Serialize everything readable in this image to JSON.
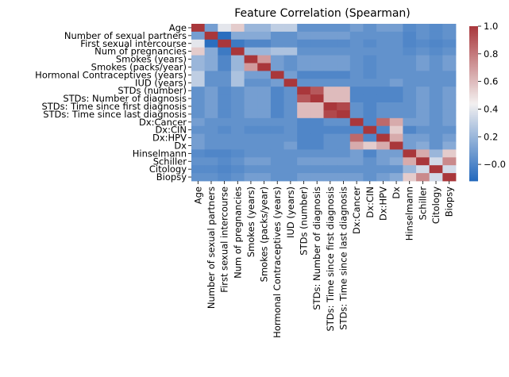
{
  "chart_data": {
    "type": "heatmap",
    "title": "Feature Correlation (Spearman)",
    "rows": [
      "Age",
      "Number of sexual partners",
      "First sexual intercourse",
      "Num of pregnancies",
      "Smokes (years)",
      "Smokes (packs/year)",
      "Hormonal Contraceptives (years)",
      "IUD (years)",
      "STDs (number)",
      "STDs: Number of diagnosis",
      "STDs: Time since first diagnosis",
      "STDs: Time since last diagnosis",
      "Dx:Cancer",
      "Dx:CIN",
      "Dx:HPV",
      "Dx",
      "Hinselmann",
      "Schiller",
      "Citology",
      "Biopsy"
    ],
    "columns": [
      "Age",
      "Number of sexual partners",
      "First sexual intercourse",
      "Num of pregnancies",
      "Smokes (years)",
      "Smokes (packs/year)",
      "Hormonal Contraceptives (years)",
      "IUD (years)",
      "STDs (number)",
      "STDs: Number of diagnosis",
      "STDs: Time since first diagnosis",
      "STDs: Time since last diagnosis",
      "Dx:Cancer",
      "Dx:CIN",
      "Dx:HPV",
      "Dx",
      "Hinselmann",
      "Schiller",
      "Citology",
      "Biopsy"
    ],
    "values": [
      [
        1.0,
        0.1,
        0.4,
        0.55,
        0.2,
        0.2,
        0.3,
        0.3,
        0.05,
        0.05,
        0.05,
        0.05,
        0.1,
        0.05,
        0.1,
        0.1,
        0.02,
        0.05,
        0.02,
        0.05
      ],
      [
        0.1,
        1.0,
        -0.1,
        0.15,
        0.15,
        0.15,
        0.05,
        0.05,
        0.1,
        0.1,
        0.1,
        0.1,
        0.05,
        0.05,
        0.05,
        0.05,
        0.0,
        0.05,
        0.02,
        0.05
      ],
      [
        0.4,
        -0.1,
        1.0,
        -0.05,
        0.0,
        0.0,
        0.05,
        0.05,
        0.02,
        0.02,
        0.02,
        0.02,
        0.05,
        0.02,
        0.05,
        0.05,
        0.0,
        0.02,
        0.0,
        0.02
      ],
      [
        0.55,
        0.15,
        -0.05,
        1.0,
        0.2,
        0.2,
        0.25,
        0.25,
        0.05,
        0.05,
        0.05,
        0.05,
        0.05,
        0.05,
        0.05,
        0.05,
        0.02,
        0.05,
        0.02,
        0.05
      ],
      [
        0.2,
        0.15,
        0.0,
        0.2,
        1.0,
        0.7,
        0.1,
        0.05,
        0.1,
        0.1,
        0.1,
        0.1,
        0.05,
        0.02,
        0.05,
        0.05,
        0.05,
        0.1,
        0.05,
        0.1
      ],
      [
        0.2,
        0.15,
        0.0,
        0.2,
        0.7,
        1.0,
        0.1,
        0.05,
        0.1,
        0.1,
        0.1,
        0.1,
        0.05,
        0.02,
        0.05,
        0.05,
        0.05,
        0.1,
        0.05,
        0.1
      ],
      [
        0.3,
        0.05,
        0.05,
        0.25,
        0.1,
        0.1,
        1.0,
        0.1,
        0.0,
        0.0,
        0.0,
        0.0,
        0.05,
        0.02,
        0.05,
        0.05,
        0.05,
        0.05,
        0.05,
        0.05
      ],
      [
        0.3,
        0.05,
        0.05,
        0.25,
        0.05,
        0.05,
        0.1,
        1.0,
        0.05,
        0.05,
        0.05,
        0.05,
        0.05,
        0.05,
        0.05,
        0.1,
        0.05,
        0.05,
        0.05,
        0.05
      ],
      [
        0.05,
        0.1,
        0.02,
        0.05,
        0.1,
        0.1,
        0.0,
        0.05,
        1.0,
        0.9,
        0.6,
        0.6,
        0.0,
        0.0,
        0.0,
        0.0,
        0.05,
        0.1,
        0.05,
        0.1
      ],
      [
        0.05,
        0.1,
        0.02,
        0.05,
        0.1,
        0.1,
        0.0,
        0.05,
        0.9,
        1.0,
        0.6,
        0.6,
        0.0,
        0.0,
        0.0,
        0.0,
        0.05,
        0.1,
        0.05,
        0.1
      ],
      [
        0.05,
        0.1,
        0.02,
        0.05,
        0.1,
        0.1,
        0.0,
        0.05,
        0.6,
        0.6,
        1.0,
        0.95,
        0.05,
        0.0,
        0.05,
        0.05,
        0.05,
        0.1,
        0.05,
        0.1
      ],
      [
        0.05,
        0.1,
        0.02,
        0.05,
        0.1,
        0.1,
        0.0,
        0.05,
        0.6,
        0.6,
        0.95,
        1.0,
        0.05,
        0.0,
        0.05,
        0.05,
        0.05,
        0.1,
        0.05,
        0.1
      ],
      [
        0.1,
        0.05,
        0.05,
        0.05,
        0.05,
        0.05,
        0.05,
        0.05,
        0.0,
        0.0,
        0.05,
        0.05,
        1.0,
        0.0,
        0.85,
        0.65,
        0.1,
        0.1,
        0.05,
        0.1
      ],
      [
        0.05,
        0.05,
        0.02,
        0.05,
        0.02,
        0.02,
        0.02,
        0.05,
        0.0,
        0.0,
        0.0,
        0.0,
        0.0,
        1.0,
        0.0,
        0.55,
        0.0,
        0.05,
        0.05,
        0.05
      ],
      [
        0.1,
        0.05,
        0.05,
        0.05,
        0.05,
        0.05,
        0.05,
        0.05,
        0.0,
        0.0,
        0.05,
        0.05,
        0.85,
        0.0,
        1.0,
        0.65,
        0.1,
        0.1,
        0.05,
        0.1
      ],
      [
        0.1,
        0.05,
        0.05,
        0.05,
        0.05,
        0.05,
        0.05,
        0.1,
        0.0,
        0.0,
        0.05,
        0.05,
        0.65,
        0.55,
        0.65,
        1.0,
        0.1,
        0.15,
        0.05,
        0.15
      ],
      [
        0.02,
        0.0,
        0.0,
        0.02,
        0.05,
        0.05,
        0.05,
        0.05,
        0.05,
        0.05,
        0.05,
        0.05,
        0.1,
        0.0,
        0.1,
        0.1,
        1.0,
        0.65,
        0.2,
        0.55
      ],
      [
        0.05,
        0.05,
        0.02,
        0.05,
        0.1,
        0.1,
        0.05,
        0.05,
        0.1,
        0.1,
        0.1,
        0.1,
        0.1,
        0.05,
        0.1,
        0.15,
        0.65,
        1.0,
        0.35,
        0.75
      ],
      [
        0.02,
        0.02,
        0.0,
        0.02,
        0.05,
        0.05,
        0.05,
        0.05,
        0.05,
        0.05,
        0.05,
        0.05,
        0.05,
        0.05,
        0.05,
        0.05,
        0.2,
        0.35,
        1.0,
        0.35
      ],
      [
        0.05,
        0.05,
        0.02,
        0.05,
        0.1,
        0.1,
        0.05,
        0.05,
        0.1,
        0.1,
        0.1,
        0.1,
        0.1,
        0.05,
        0.1,
        0.15,
        0.55,
        0.75,
        0.35,
        1.0
      ]
    ],
    "colorbar": {
      "colormap": "vlag",
      "vmin": -0.12,
      "vmax": 1.0,
      "ticks": [
        -0.0,
        0.2,
        0.4,
        0.6,
        0.8,
        1.0
      ],
      "tick_labels": [
        "−0.0",
        "0.2",
        "0.4",
        "0.6",
        "0.8",
        "1.0"
      ]
    },
    "colors": {
      "low": "#2369bd",
      "mid": "#f3f0f0",
      "high": "#a9373b"
    }
  }
}
